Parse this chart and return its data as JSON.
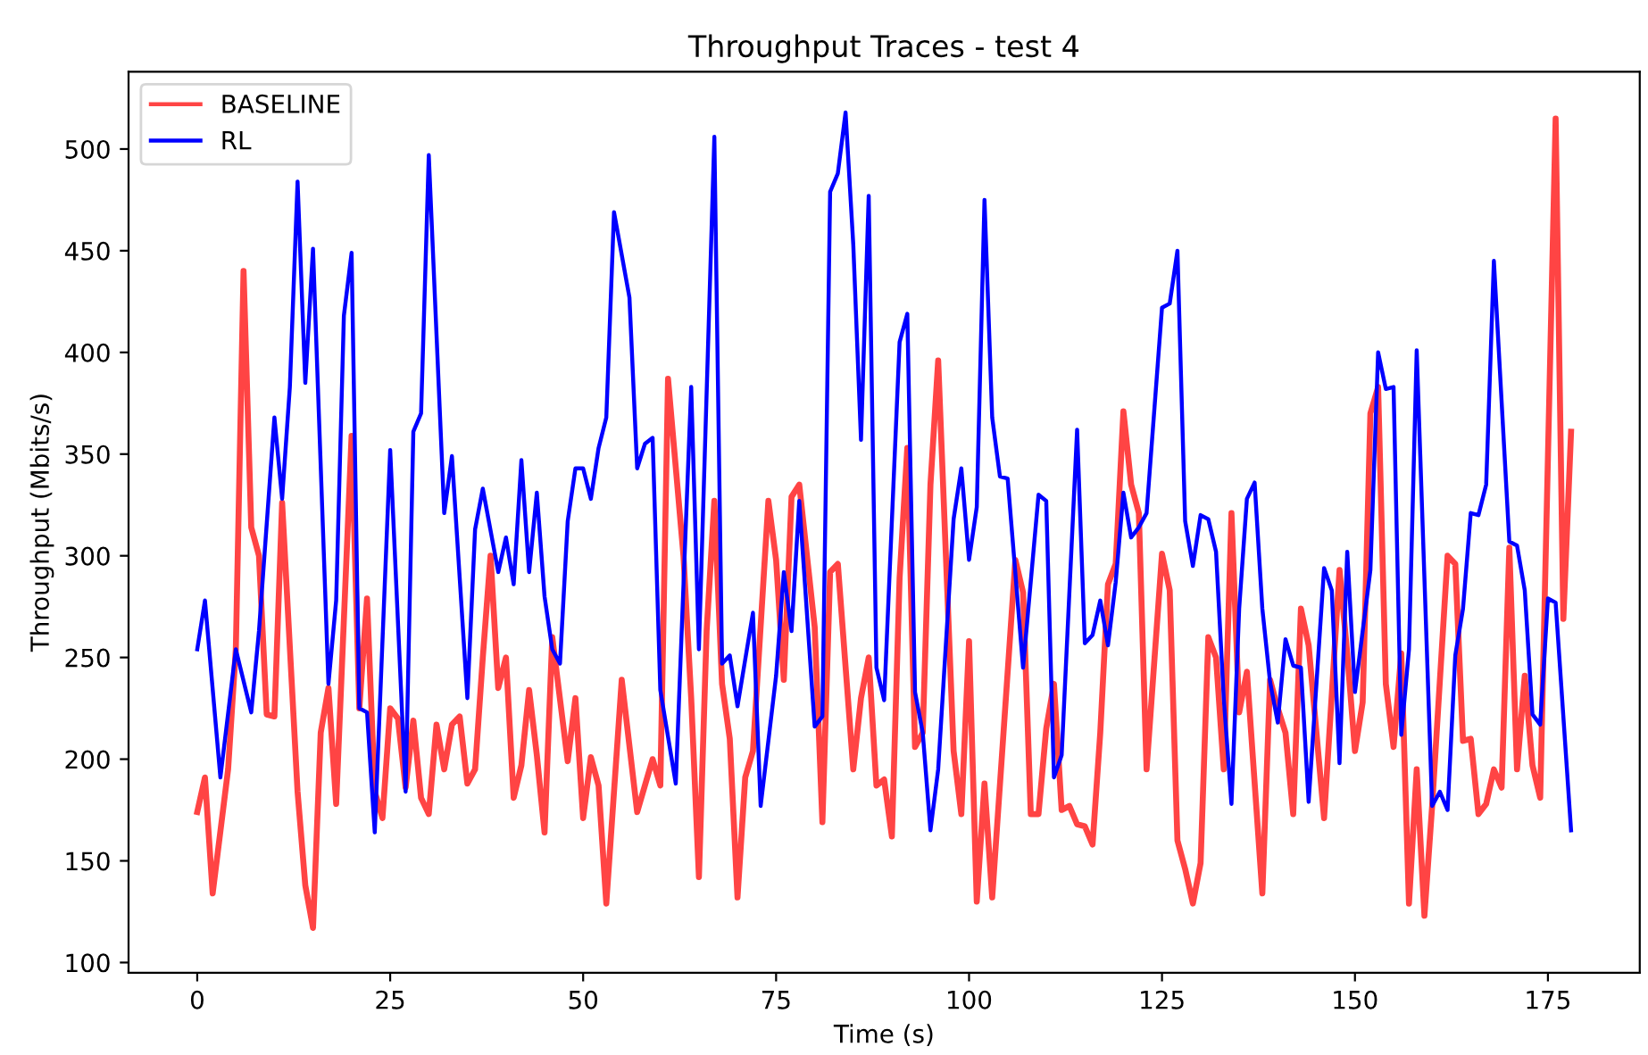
{
  "chart_data": {
    "type": "line",
    "title": "Throughput Traces - test 4",
    "xlabel": "Time (s)",
    "ylabel": "Throughput (Mbits/s)",
    "xlim": [
      -8.9,
      186.9
    ],
    "ylim": [
      95,
      538
    ],
    "xticks": [
      0,
      25,
      50,
      75,
      100,
      125,
      150,
      175
    ],
    "yticks": [
      100,
      150,
      200,
      250,
      300,
      350,
      400,
      450,
      500
    ],
    "grid": false,
    "legend": "top left",
    "marker": "none",
    "line_style": "solid",
    "series": [
      {
        "name": "BASELINE",
        "color": "#ff4444",
        "x": [
          0,
          1,
          2,
          4,
          5,
          6,
          7,
          8,
          9,
          10,
          11,
          13,
          14,
          15,
          16,
          17,
          18,
          20,
          21,
          22,
          23,
          24,
          25,
          26,
          27,
          28,
          29,
          30,
          31,
          32,
          33,
          34,
          35,
          36,
          37,
          38,
          39,
          40,
          41,
          42,
          43,
          44,
          45,
          46,
          48,
          49,
          50,
          51,
          52,
          53,
          55,
          57,
          59,
          60,
          61,
          63,
          64,
          65,
          66,
          67,
          68,
          69,
          70,
          71,
          72,
          74,
          75,
          76,
          77,
          78,
          80,
          81,
          82,
          83,
          85,
          86,
          87,
          88,
          89,
          90,
          91,
          92,
          93,
          94,
          95,
          96,
          98,
          99,
          100,
          101,
          102,
          103,
          106,
          107,
          108,
          109,
          110,
          111,
          112,
          113,
          114,
          115,
          116,
          117,
          118,
          119,
          120,
          121,
          122,
          123,
          125,
          126,
          127,
          128,
          129,
          130,
          131,
          132,
          133,
          134,
          135,
          136,
          138,
          139,
          140,
          141,
          142,
          143,
          144,
          146,
          148,
          149,
          150,
          151,
          152,
          153,
          154,
          155,
          156,
          157,
          158,
          159,
          160,
          162,
          163,
          164,
          165,
          166,
          167,
          168,
          169,
          170,
          171,
          172,
          173,
          174,
          176,
          177,
          178
        ],
        "values": [
          174,
          191,
          134,
          195,
          254,
          440,
          314,
          300,
          222,
          221,
          326,
          184,
          138,
          117,
          213,
          235,
          178,
          359,
          225,
          279,
          184,
          171,
          225,
          220,
          186,
          219,
          181,
          173,
          217,
          195,
          217,
          221,
          188,
          195,
          250,
          300,
          235,
          250,
          181,
          197,
          234,
          202,
          164,
          260,
          199,
          230,
          171,
          201,
          187,
          129,
          239,
          174,
          200,
          187,
          387,
          300,
          230,
          142,
          263,
          327,
          237,
          210,
          132,
          191,
          204,
          327,
          298,
          239,
          329,
          335,
          265,
          169,
          292,
          296,
          195,
          230,
          250,
          187,
          190,
          162,
          289,
          353,
          206,
          213,
          335,
          396,
          204,
          173,
          258,
          130,
          188,
          132,
          298,
          282,
          173,
          173,
          215,
          237,
          175,
          177,
          168,
          167,
          158,
          213,
          286,
          296,
          371,
          335,
          321,
          195,
          301,
          283,
          160,
          146,
          129,
          149,
          260,
          250,
          195,
          321,
          223,
          243,
          134,
          239,
          225,
          213,
          173,
          274,
          256,
          171,
          293,
          252,
          204,
          228,
          370,
          383,
          237,
          206,
          252,
          129,
          195,
          123,
          177,
          300,
          296,
          209,
          210,
          173,
          178,
          195,
          186,
          304,
          195,
          241,
          197,
          181,
          515,
          269,
          361
        ]
      },
      {
        "name": "RL",
        "color": "#0000ff",
        "x": [
          0,
          1,
          3,
          5,
          7,
          8,
          10,
          11,
          12,
          13,
          14,
          15,
          17,
          18,
          19,
          20,
          21,
          22,
          23,
          25,
          27,
          28,
          29,
          30,
          32,
          33,
          35,
          36,
          37,
          39,
          40,
          41,
          42,
          43,
          44,
          45,
          46,
          47,
          48,
          49,
          50,
          51,
          52,
          53,
          54,
          56,
          57,
          58,
          59,
          60,
          62,
          64,
          65,
          67,
          68,
          69,
          70,
          72,
          73,
          75,
          76,
          77,
          78,
          80,
          81,
          82,
          83,
          84,
          85,
          86,
          87,
          88,
          89,
          91,
          92,
          93,
          94,
          95,
          96,
          98,
          99,
          100,
          101,
          102,
          103,
          104,
          105,
          107,
          109,
          110,
          111,
          112,
          114,
          115,
          116,
          117,
          118,
          119,
          120,
          121,
          122,
          123,
          125,
          126,
          127,
          128,
          129,
          130,
          131,
          132,
          133,
          134,
          135,
          136,
          137,
          138,
          139,
          140,
          141,
          142,
          143,
          144,
          146,
          147,
          148,
          149,
          150,
          152,
          153,
          154,
          155,
          156,
          157,
          158,
          160,
          161,
          162,
          163,
          164,
          165,
          166,
          167,
          168,
          170,
          171,
          172,
          173,
          174,
          175,
          176,
          178
        ],
        "values": [
          254,
          278,
          191,
          254,
          223,
          263,
          368,
          328,
          383,
          484,
          385,
          451,
          237,
          278,
          418,
          449,
          225,
          223,
          164,
          352,
          184,
          361,
          370,
          497,
          321,
          349,
          230,
          313,
          333,
          292,
          309,
          286,
          347,
          292,
          331,
          280,
          254,
          247,
          317,
          343,
          343,
          328,
          353,
          368,
          469,
          427,
          343,
          355,
          358,
          234,
          188,
          383,
          254,
          506,
          247,
          251,
          226,
          272,
          177,
          241,
          292,
          263,
          327,
          216,
          221,
          479,
          488,
          518,
          453,
          357,
          477,
          245,
          229,
          405,
          419,
          233,
          213,
          165,
          195,
          318,
          343,
          298,
          324,
          475,
          368,
          339,
          338,
          245,
          330,
          327,
          191,
          202,
          362,
          257,
          261,
          278,
          256,
          287,
          331,
          309,
          314,
          321,
          422,
          424,
          450,
          317,
          295,
          320,
          318,
          302,
          230,
          178,
          274,
          328,
          336,
          274,
          238,
          218,
          259,
          246,
          245,
          179,
          294,
          283,
          198,
          302,
          233,
          293,
          400,
          382,
          383,
          212,
          254,
          401,
          177,
          184,
          175,
          251,
          274,
          321,
          320,
          335,
          445,
          307,
          305,
          283,
          222,
          217,
          279,
          277,
          165
        ]
      }
    ]
  }
}
